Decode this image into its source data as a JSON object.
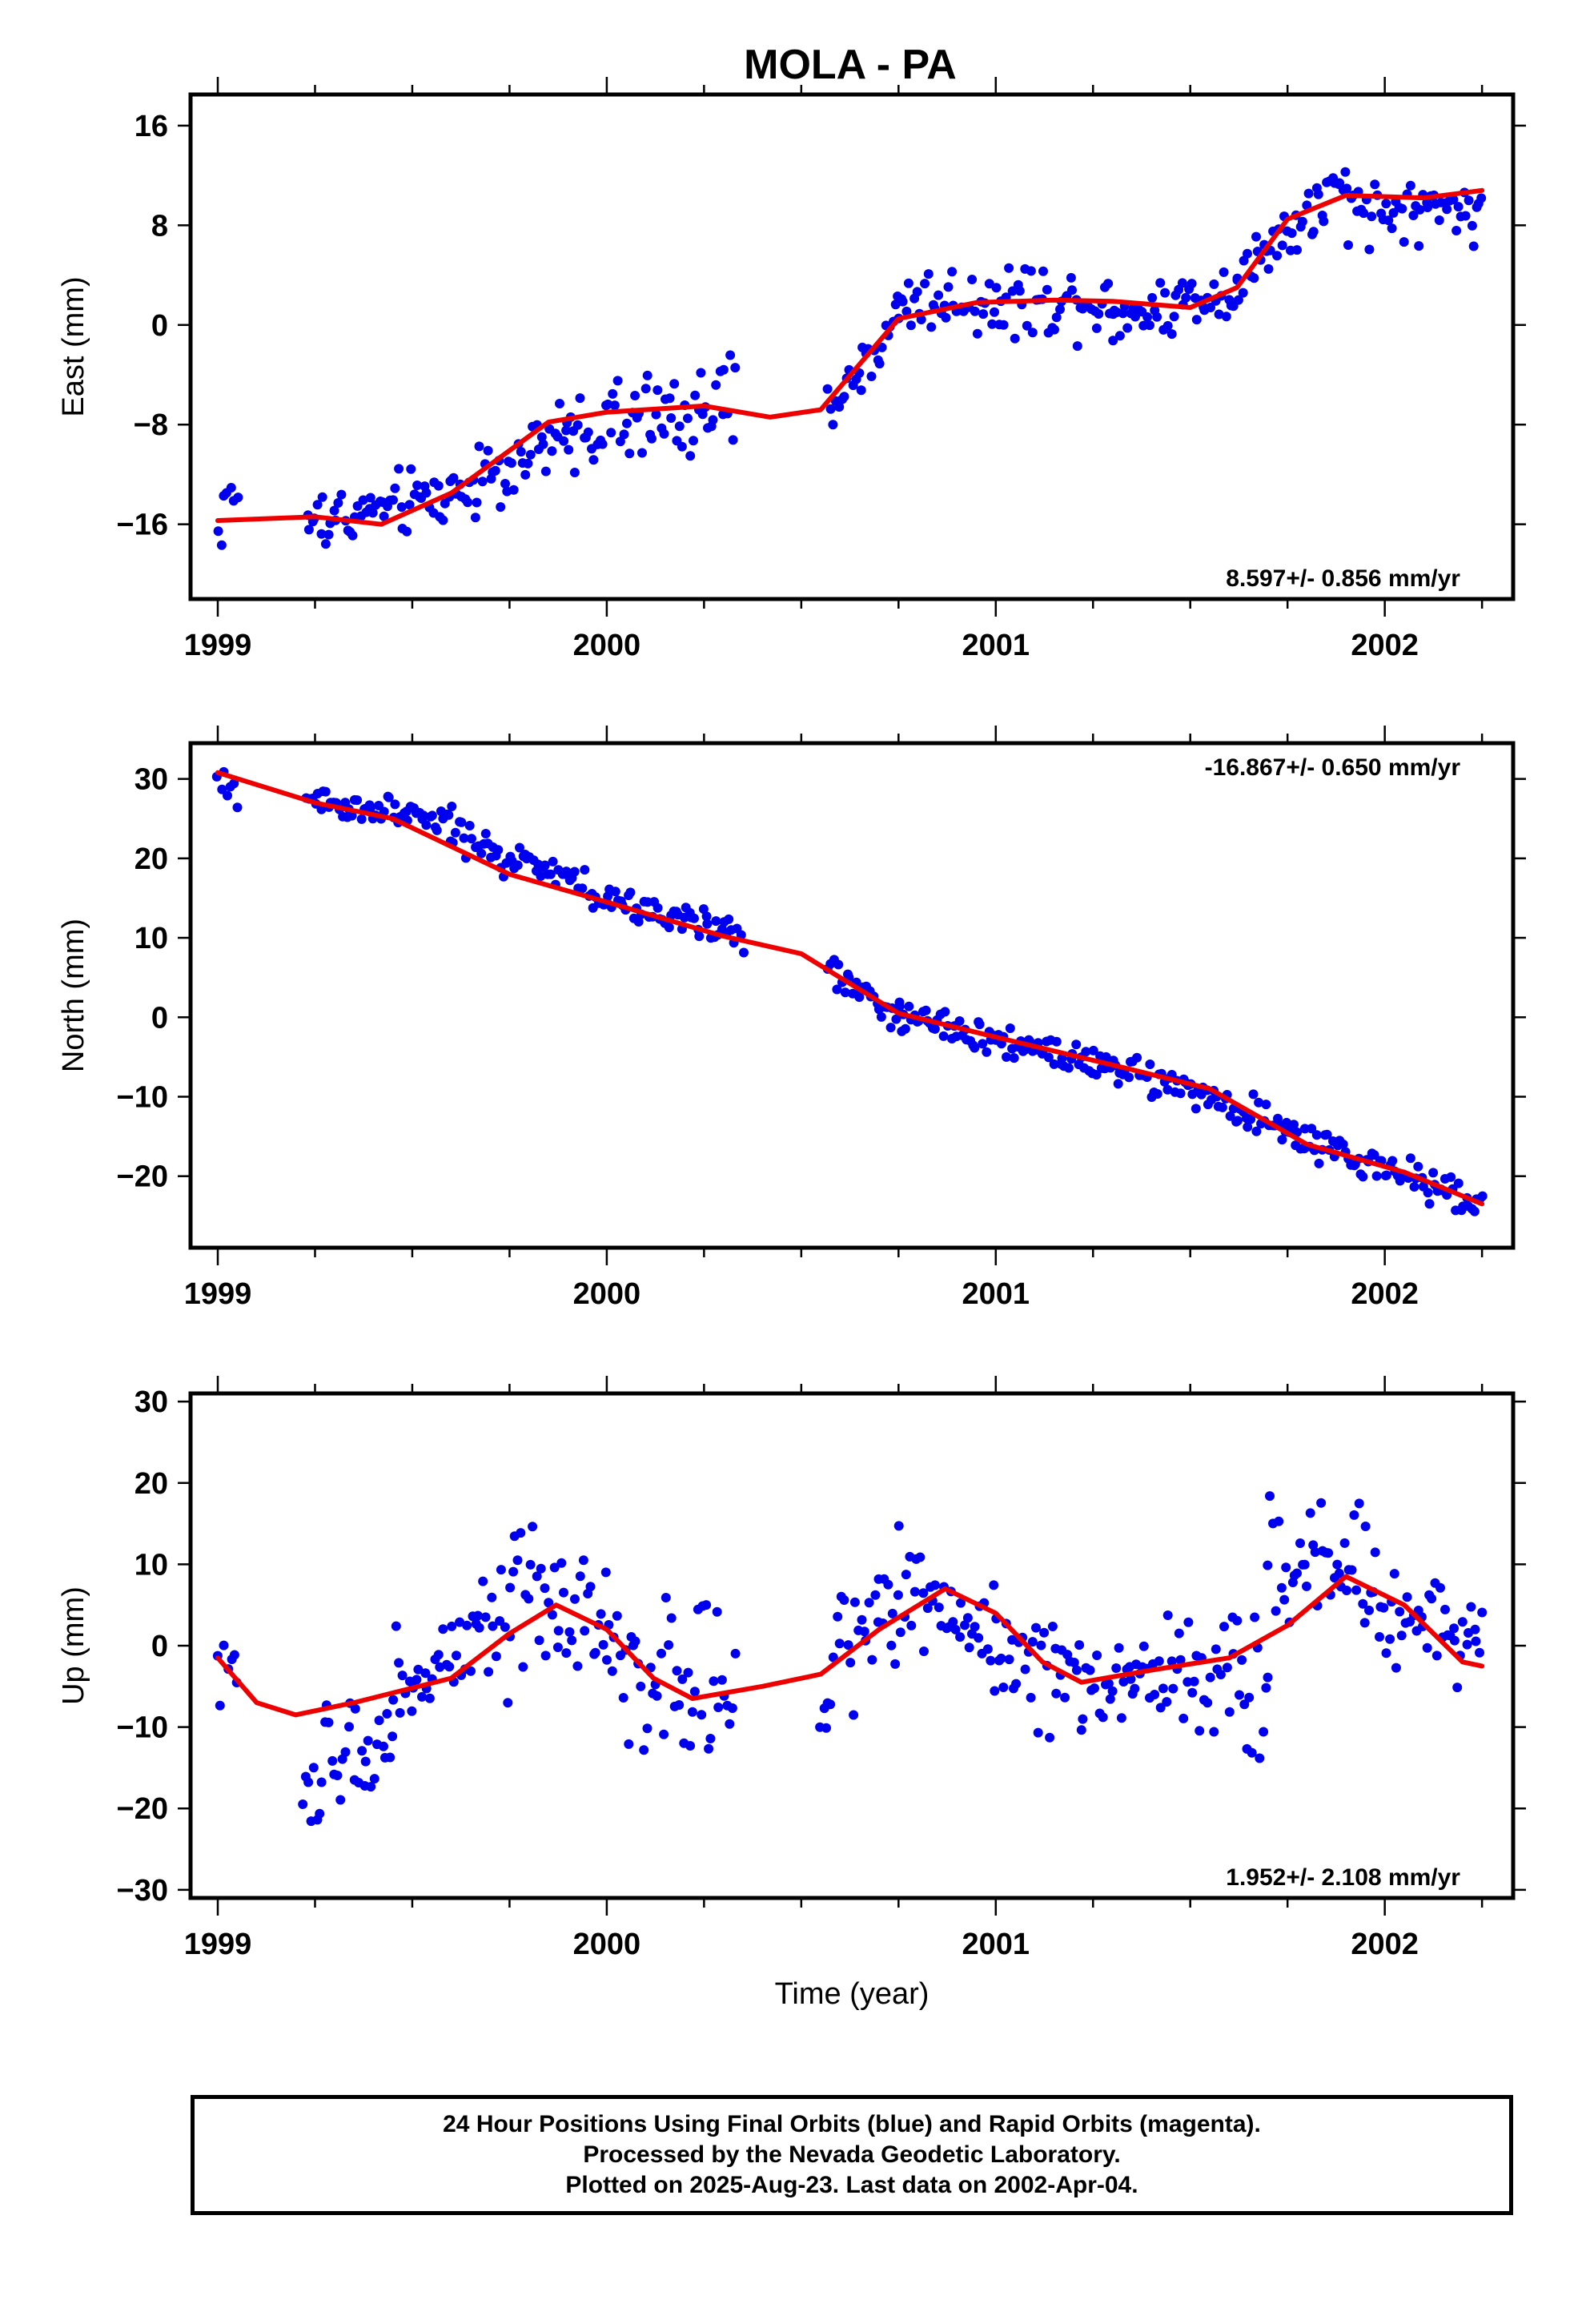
{
  "title": "MOLA - PA",
  "footer": {
    "line1": "24 Hour Positions Using Final Orbits (blue) and Rapid Orbits (magenta).",
    "line2": "Processed by the Nevada Geodetic Laboratory.",
    "line3": "Plotted on 2025-Aug-23. Last data on 2002-Apr-04."
  },
  "chart_data": [
    {
      "type": "scatter",
      "name": "east",
      "ylabel": "East (mm)",
      "xlabel": "",
      "xlim": [
        1998.93,
        2002.33
      ],
      "ylim": [
        -22,
        18.5
      ],
      "xticks": [
        1999,
        2000,
        2001,
        2002
      ],
      "yticks": [
        -16,
        -8,
        0,
        8,
        16
      ],
      "rate_label": "8.597+/- 0.856 mm/yr",
      "rate_position": "bottom-right",
      "point_color": "#0000ee",
      "line_color": "#ee0000",
      "fit_line": {
        "x": [
          1999.0,
          1999.25,
          1999.42,
          1999.6,
          1999.85,
          2000.0,
          2000.25,
          2000.42,
          2000.55,
          2000.75,
          2000.95,
          2001.15,
          2001.3,
          2001.5,
          2001.62,
          2001.75,
          2001.9,
          2002.1,
          2002.25
        ],
        "y": [
          -15.7,
          -15.4,
          -16.0,
          -13.5,
          -7.8,
          -7.0,
          -6.5,
          -7.4,
          -6.8,
          0.5,
          1.8,
          2.0,
          1.9,
          1.4,
          3.0,
          8.5,
          10.4,
          10.2,
          10.8
        ]
      },
      "segments": [
        {
          "x": [
            1999.0,
            1999.05
          ],
          "y": [
            -16.0,
            -13.0
          ],
          "spread": 2.6
        },
        {
          "x": [
            1999.23,
            1999.6
          ],
          "y": [
            -16.0,
            -13.5
          ],
          "spread": 2.4
        },
        {
          "x": [
            1999.6,
            1999.9
          ],
          "y": [
            -13.5,
            -9.0
          ],
          "spread": 2.8
        },
        {
          "x": [
            1999.9,
            2000.33
          ],
          "y": [
            -8.5,
            -6.5
          ],
          "spread": 3.2
        },
        {
          "x": [
            2000.57,
            2000.75
          ],
          "y": [
            -7.0,
            0.5
          ],
          "spread": 2.0
        },
        {
          "x": [
            2000.75,
            2001.3
          ],
          "y": [
            2.0,
            2.0
          ],
          "spread": 2.6
        },
        {
          "x": [
            2001.3,
            2001.62
          ],
          "y": [
            0.5,
            3.0
          ],
          "spread": 2.2
        },
        {
          "x": [
            2001.62,
            2001.9
          ],
          "y": [
            4.0,
            11.0
          ],
          "spread": 2.6
        },
        {
          "x": [
            2001.9,
            2002.25
          ],
          "y": [
            9.0,
            9.5
          ],
          "spread": 2.4
        }
      ]
    },
    {
      "type": "scatter",
      "name": "north",
      "ylabel": "North (mm)",
      "xlabel": "",
      "xlim": [
        1998.93,
        2002.33
      ],
      "ylim": [
        -29,
        34.5
      ],
      "xticks": [
        1999,
        2000,
        2001,
        2002
      ],
      "yticks": [
        -20,
        -10,
        0,
        10,
        20,
        30
      ],
      "rate_label": "-16.867+/- 0.650 mm/yr",
      "rate_position": "top-right",
      "point_color": "#0000ee",
      "line_color": "#ee0000",
      "fit_line": {
        "x": [
          1999.0,
          1999.25,
          1999.45,
          1999.75,
          2000.0,
          2000.3,
          2000.5,
          2000.75,
          2001.0,
          2001.3,
          2001.55,
          2001.8,
          2002.05,
          2002.25
        ],
        "y": [
          30.8,
          27.0,
          25.0,
          18.0,
          14.5,
          10.2,
          8.0,
          0.5,
          -2.5,
          -6.0,
          -9.0,
          -16.0,
          -19.5,
          -23.5
        ]
      },
      "segments": [
        {
          "x": [
            1999.0,
            1999.05
          ],
          "y": [
            29.0,
            28.0
          ],
          "spread": 2.2
        },
        {
          "x": [
            1999.23,
            1999.6
          ],
          "y": [
            27.5,
            24.5
          ],
          "spread": 2.0
        },
        {
          "x": [
            1999.6,
            2000.0
          ],
          "y": [
            23.0,
            15.0
          ],
          "spread": 2.2
        },
        {
          "x": [
            2000.0,
            2000.35
          ],
          "y": [
            14.5,
            10.5
          ],
          "spread": 2.0
        },
        {
          "x": [
            2000.57,
            2000.75
          ],
          "y": [
            6.0,
            0.0
          ],
          "spread": 1.8
        },
        {
          "x": [
            2000.75,
            2001.3
          ],
          "y": [
            0.0,
            -6.0
          ],
          "spread": 2.2
        },
        {
          "x": [
            2001.3,
            2001.75
          ],
          "y": [
            -6.0,
            -14.0
          ],
          "spread": 2.0
        },
        {
          "x": [
            2001.75,
            2002.25
          ],
          "y": [
            -15.0,
            -23.0
          ],
          "spread": 2.2
        }
      ]
    },
    {
      "type": "scatter",
      "name": "up",
      "ylabel": "Up (mm)",
      "xlabel": "Time (year)",
      "xlim": [
        1998.93,
        2002.33
      ],
      "ylim": [
        -31,
        31
      ],
      "xticks": [
        1999,
        2000,
        2001,
        2002
      ],
      "yticks": [
        -30,
        -20,
        -10,
        0,
        10,
        20,
        30
      ],
      "rate_label": "1.952+/- 2.108 mm/yr",
      "rate_position": "bottom-right",
      "point_color": "#0000ee",
      "line_color": "#ee0000",
      "fit_line": {
        "x": [
          1999.0,
          1999.1,
          1999.2,
          1999.35,
          1999.6,
          1999.75,
          1999.87,
          2000.0,
          2000.12,
          2000.22,
          2000.4,
          2000.55,
          2000.7,
          2000.87,
          2001.0,
          2001.12,
          2001.22,
          2001.4,
          2001.6,
          2001.75,
          2001.9,
          2002.05,
          2002.2,
          2002.25
        ],
        "y": [
          -1.5,
          -7.0,
          -8.5,
          -7.0,
          -4.0,
          1.5,
          5.0,
          2.0,
          -4.0,
          -6.5,
          -5.0,
          -3.5,
          2.0,
          7.0,
          4.0,
          -2.0,
          -4.5,
          -3.0,
          -1.5,
          2.5,
          8.5,
          5.0,
          -2.0,
          -2.5
        ]
      },
      "segments": [
        {
          "x": [
            1999.0,
            1999.05
          ],
          "y": [
            -4.0,
            -4.0
          ],
          "spread": 9.0
        },
        {
          "x": [
            1999.22,
            1999.45
          ],
          "y": [
            -18.0,
            -10.0
          ],
          "spread": 7.0
        },
        {
          "x": [
            1999.45,
            1999.75
          ],
          "y": [
            -5.0,
            2.0
          ],
          "spread": 7.0
        },
        {
          "x": [
            1999.75,
            2000.0
          ],
          "y": [
            6.0,
            2.0
          ],
          "spread": 8.0
        },
        {
          "x": [
            2000.0,
            2000.33
          ],
          "y": [
            -2.0,
            -6.0
          ],
          "spread": 9.0
        },
        {
          "x": [
            2000.55,
            2000.75
          ],
          "y": [
            -3.0,
            5.0
          ],
          "spread": 7.0
        },
        {
          "x": [
            2000.75,
            2001.0
          ],
          "y": [
            8.0,
            2.0
          ],
          "spread": 7.0
        },
        {
          "x": [
            2001.0,
            2001.35
          ],
          "y": [
            -2.0,
            -5.0
          ],
          "spread": 6.0
        },
        {
          "x": [
            2001.35,
            2001.7
          ],
          "y": [
            -3.0,
            -5.0
          ],
          "spread": 8.0
        },
        {
          "x": [
            2001.7,
            2001.95
          ],
          "y": [
            10.0,
            12.0
          ],
          "spread": 8.0
        },
        {
          "x": [
            2001.95,
            2002.25
          ],
          "y": [
            5.0,
            2.0
          ],
          "spread": 6.0
        }
      ]
    }
  ]
}
